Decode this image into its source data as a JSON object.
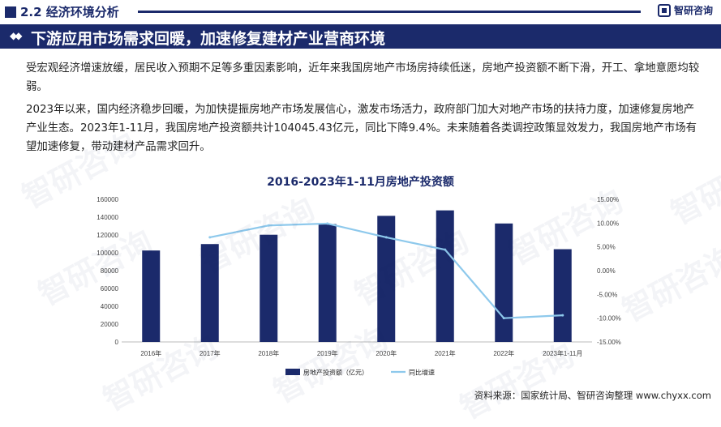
{
  "header": {
    "section": "2.2 经济环境分析",
    "logo_text": "智研咨询",
    "banner": "下游应用市场需求回暖，加速修复建材产业营商环境"
  },
  "paragraphs": [
    "受宏观经济增速放缓，居民收入预期不足等多重因素影响，近年来我国房地产市场房持续低迷，房地产投资额不断下滑，开工、拿地意愿均较弱。",
    "2023年以来，国内经济稳步回暖，为加快提振房地产市场发展信心，激发市场活力，政府部门加大对地产市场的扶持力度，加速修复房地产产业生态。2023年1-11月，我国房地产投资额共计104045.43亿元，同比下降9.4%。未来随着各类调控政策显效发力，我国房地产市场有望加速修复，带动建材产品需求回升。"
  ],
  "source": "资料来源：国家统计局、智研咨询整理  www.chyxx.com",
  "watermark": "智研咨询",
  "colors": {
    "bar": "#1b2a6b",
    "line": "#8ec9ec",
    "brand": "#1b2a6b"
  },
  "chart_data": {
    "type": "bar",
    "title": "2016-2023年1-11月房地产投资额",
    "categories": [
      "2016年",
      "2017年",
      "2018年",
      "2019年",
      "2020年",
      "2021年",
      "2022年",
      "2023年1-11月"
    ],
    "series": [
      {
        "name": "房地产投资额（亿元）",
        "type": "bar",
        "axis": "left",
        "values": [
          102581,
          109799,
          120264,
          132194,
          141443,
          147602,
          132895,
          104045
        ]
      },
      {
        "name": "同比增速",
        "type": "line",
        "axis": "right",
        "unit": "%",
        "values": [
          null,
          7.0,
          9.5,
          9.9,
          7.0,
          4.4,
          -10.0,
          -9.4
        ]
      }
    ],
    "ylim_left": [
      0,
      160000
    ],
    "yticks_left": [
      "0",
      "20000",
      "40000",
      "60000",
      "80000",
      "100000",
      "120000",
      "140000",
      "160000"
    ],
    "ylim_right": [
      -15,
      15
    ],
    "yticks_right": [
      "-15.00%",
      "-10.00%",
      "-5.00%",
      "0.00%",
      "5.00%",
      "10.00%",
      "15.00%"
    ],
    "legend": "bottom-center",
    "grid": false
  }
}
